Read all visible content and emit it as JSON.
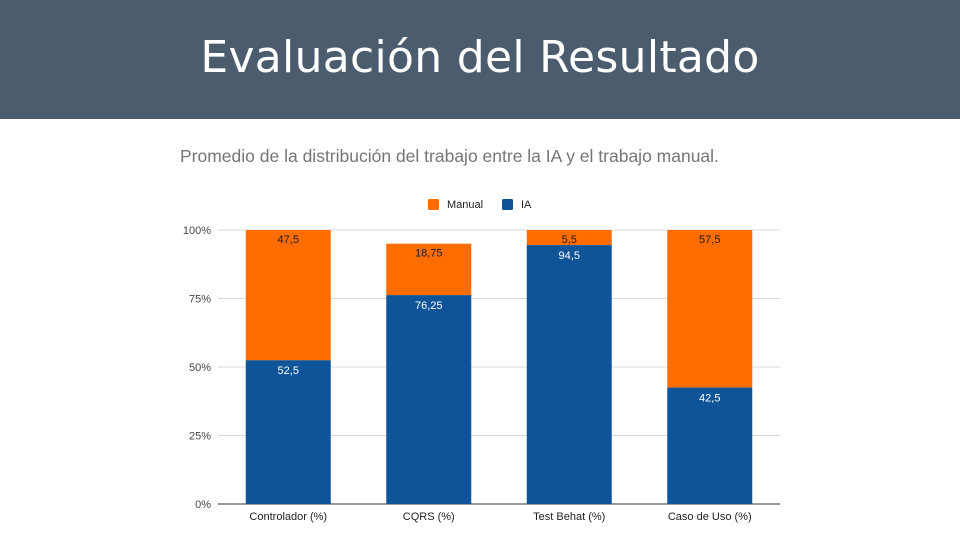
{
  "slide": {
    "title": "Evaluación del Resultado"
  },
  "colors": {
    "header_bg": "#4b5c6f",
    "manual": "#ff6d00",
    "ia": "#0f5498"
  },
  "chart_data": {
    "type": "bar",
    "stacked": true,
    "title": "Promedio de la distribución del trabajo entre la IA y el trabajo manual.",
    "categories": [
      "Controlador (%)",
      "CQRS (%)",
      "Test Behat (%)",
      "Caso de Uso (%)"
    ],
    "series": [
      {
        "name": "IA",
        "values": [
          52.5,
          76.25,
          94.5,
          42.5
        ],
        "labels": [
          "52,5",
          "76,25",
          "94,5",
          "42,5"
        ],
        "color": "#0f5498"
      },
      {
        "name": "Manual",
        "values": [
          47.5,
          18.75,
          5.5,
          57.5
        ],
        "labels": [
          "47,5",
          "18,75",
          "5,5",
          "57,5"
        ],
        "color": "#ff6d00"
      }
    ],
    "legend": {
      "position": "top",
      "items": [
        "Manual",
        "IA"
      ]
    },
    "y_ticks": [
      "0%",
      "25%",
      "50%",
      "75%",
      "100%"
    ],
    "ylim": [
      0,
      100
    ],
    "grid": true,
    "xlabel": "",
    "ylabel": ""
  }
}
